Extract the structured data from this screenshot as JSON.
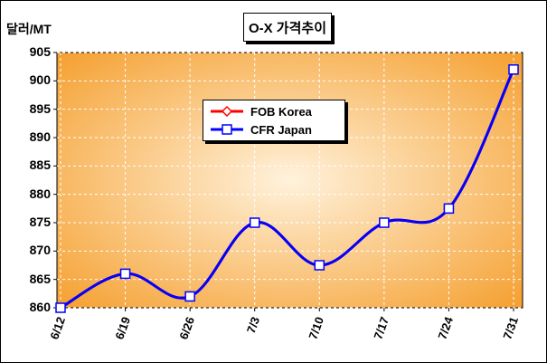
{
  "chart_data": {
    "type": "line",
    "title": "O-X 가격추이",
    "ylabel": "달러/MT",
    "xlabel": "",
    "categories": [
      "6/12",
      "6/19",
      "6/26",
      "7/3",
      "7/10",
      "7/17",
      "7/24",
      "7/31"
    ],
    "ylim": [
      860,
      905
    ],
    "yticks": [
      860,
      865,
      870,
      875,
      880,
      885,
      890,
      895,
      900,
      905
    ],
    "grid": true,
    "legend_position": "center-left",
    "series": [
      {
        "name": "FOB Korea",
        "color": "#ff0000",
        "marker": "diamond",
        "values": [
          860,
          866,
          862,
          875,
          867.5,
          875,
          877.5,
          902
        ]
      },
      {
        "name": "CFR Japan",
        "color": "#0000ff",
        "marker": "square",
        "values": [
          860,
          866,
          862,
          875,
          867.5,
          875,
          877.5,
          902
        ]
      }
    ],
    "colors": {
      "plot_center": "#fff2dc",
      "plot_edge": "#f5a030"
    }
  }
}
